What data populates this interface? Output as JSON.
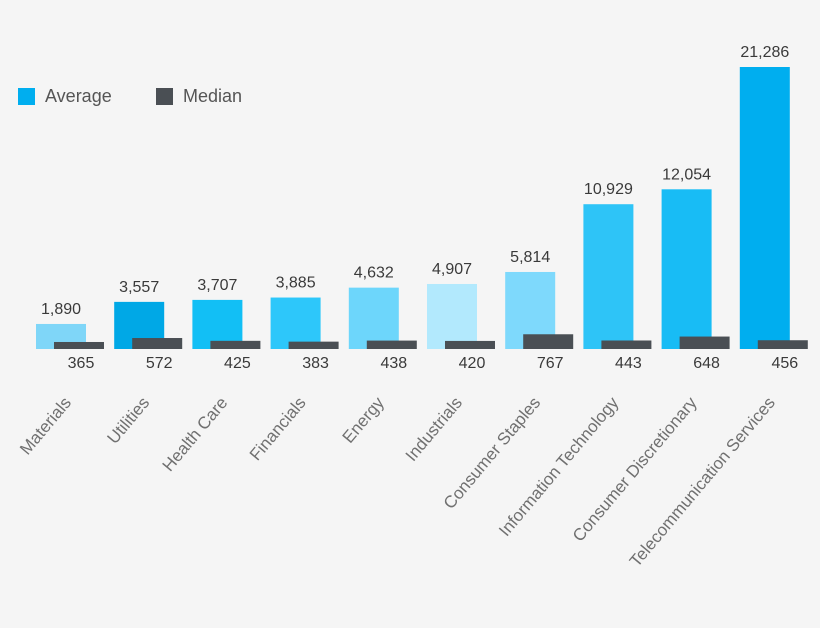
{
  "chart_data": {
    "type": "bar",
    "title": "",
    "xlabel": "",
    "ylabel": "",
    "grid": false,
    "legend_position": "top-left",
    "categories": [
      "Materials",
      "Utilities",
      "Health Care",
      "Financials",
      "Energy",
      "Industrials",
      "Consumer Staples",
      "Information Technology",
      "Consumer Discretionary",
      "Telecommunication Services"
    ],
    "series": [
      {
        "name": "Average",
        "values": [
          1890,
          3557,
          3707,
          3885,
          4632,
          4907,
          5814,
          10929,
          12054,
          21286
        ],
        "labels": [
          "1,890",
          "3,557",
          "3,707",
          "3,885",
          "4,632",
          "4,907",
          "5,814",
          "10,929",
          "12,054",
          "21,286"
        ]
      },
      {
        "name": "Median",
        "values": [
          365,
          572,
          425,
          383,
          438,
          420,
          767,
          443,
          648,
          456
        ],
        "labels": [
          "365",
          "572",
          "425",
          "383",
          "438",
          "420",
          "767",
          "443",
          "648",
          "456"
        ]
      }
    ],
    "average_bar_colors": [
      "#7fd6f8",
      "#00a8e6",
      "#12bff5",
      "#2dc7fa",
      "#6dd6fb",
      "#b2e9fd",
      "#7ed9fc",
      "#2ec4f7",
      "#18bcf5",
      "#00aeef"
    ],
    "median_color": "#4a4f54",
    "average_legend_color": "#00aeef",
    "label_color": "#3a3a3a",
    "tick_label_color": "#707070"
  }
}
